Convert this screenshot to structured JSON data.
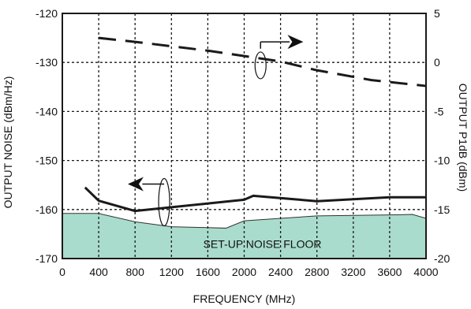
{
  "chart_data": {
    "type": "line",
    "title": "",
    "xlabel": "FREQUENCY (MHz)",
    "ylabel_left": "OUTPUT NOISE (dBm/Hz)",
    "ylabel_right": "OUTPUT P1dB (dBm)",
    "xlim": [
      0,
      4000
    ],
    "ylim_left": [
      -170,
      -120
    ],
    "ylim_right": [
      -20,
      5
    ],
    "x_ticks": [
      0,
      400,
      800,
      1200,
      1600,
      2000,
      2400,
      2800,
      3200,
      3600,
      4000
    ],
    "y_left_ticks": [
      -170,
      -160,
      -150,
      -140,
      -130,
      -120
    ],
    "y_right_ticks": [
      -20,
      -15,
      -10,
      -5,
      0,
      5
    ],
    "grid": true,
    "colors": {
      "floor_fill": "#a9dccc",
      "line": "#1a1a1a",
      "grid": "#1a1a1a"
    },
    "series": [
      {
        "style": "solid",
        "axis": "left",
        "x": [
          250,
          400,
          800,
          2000,
          2100,
          2800,
          3600,
          4000
        ],
        "y": [
          -155.5,
          -158.2,
          -160.3,
          -158,
          -157.2,
          -158.3,
          -157.5,
          -157.5
        ]
      },
      {
        "style": "dashed",
        "axis": "right",
        "x": [
          400,
          800,
          1600,
          2400,
          2800,
          3400,
          4000
        ],
        "y": [
          2.5,
          2.1,
          1.2,
          0.1,
          -0.8,
          -1.8,
          -2.4
        ]
      },
      {
        "style": "filled",
        "axis": "left",
        "x": [
          0,
          400,
          800,
          1200,
          1800,
          2000,
          2400,
          2800,
          3200,
          3600,
          3850,
          4000
        ],
        "y": [
          -160.8,
          -160.8,
          -162.5,
          -163.5,
          -163.8,
          -162.3,
          -161.8,
          -161.3,
          -161.2,
          -161.1,
          -161,
          -161.8
        ]
      }
    ],
    "annotations": {
      "floor_label": "SET-UP NOISE FLOOR"
    }
  }
}
